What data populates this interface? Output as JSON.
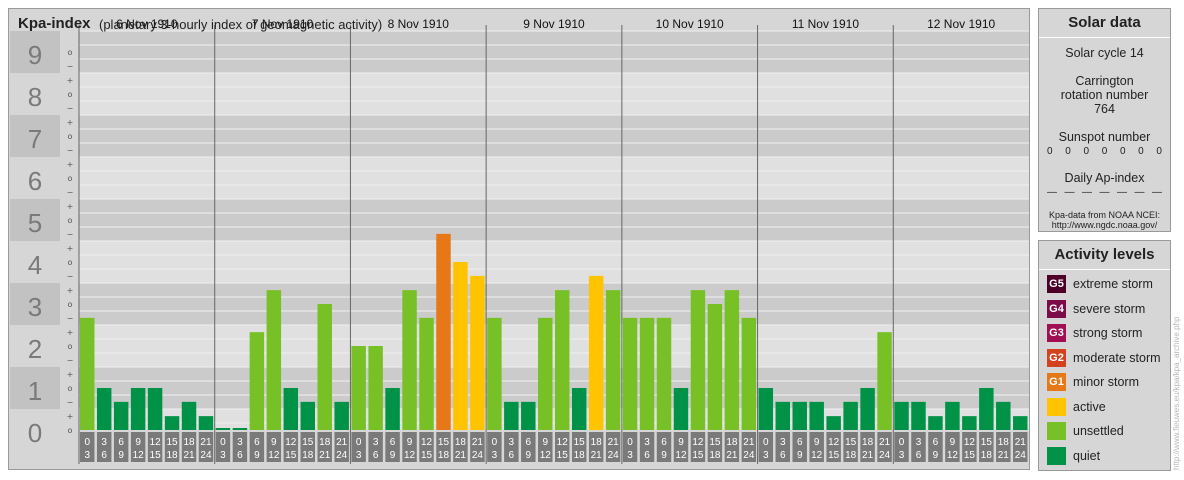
{
  "chart_data": {
    "type": "bar",
    "title": "Kpa-index",
    "subtitle": "(planetary 3-hourly index of geomagnetic activity)",
    "ylim": [
      0,
      9
    ],
    "y_major_labels": [
      "0",
      "1",
      "2",
      "3",
      "4",
      "5",
      "6",
      "7",
      "8",
      "9"
    ],
    "y_minor_labels": [
      "+",
      "o",
      "−"
    ],
    "days": [
      "6 Nov 1910",
      "7 Nov 1910",
      "8 Nov 1910",
      "9 Nov 1910",
      "10 Nov 1910",
      "11 Nov 1910",
      "12 Nov 1910"
    ],
    "interval_tops": [
      "0",
      "3",
      "6",
      "9",
      "12",
      "15",
      "18",
      "21"
    ],
    "interval_bottoms": [
      "3",
      "6",
      "9",
      "12",
      "15",
      "18",
      "21",
      "24"
    ],
    "values": [
      [
        2.67,
        1.0,
        0.67,
        1.0,
        1.0,
        0.33,
        0.67,
        0.33
      ],
      [
        0.0,
        0.0,
        2.33,
        3.33,
        1.0,
        0.67,
        3.0,
        0.67
      ],
      [
        2.0,
        2.0,
        1.0,
        3.33,
        2.67,
        4.67,
        4.0,
        3.67
      ],
      [
        2.67,
        0.67,
        0.67,
        2.67,
        3.33,
        1.0,
        3.67,
        3.33
      ],
      [
        2.67,
        2.67,
        2.67,
        1.0,
        3.33,
        3.0,
        3.33,
        2.67
      ],
      [
        1.0,
        0.67,
        0.67,
        0.67,
        0.33,
        0.67,
        1.0,
        2.33
      ],
      [
        0.67,
        0.67,
        0.33,
        0.67,
        0.33,
        1.0,
        0.67,
        0.33
      ]
    ],
    "colors": {
      "quiet": "#009246",
      "unsettled": "#77c127",
      "active": "#ffc300",
      "G1": "#e67817",
      "G2": "#d2421e",
      "G3": "#a10e51",
      "G4": "#7e0b49",
      "G5": "#4d0126"
    }
  },
  "solar": {
    "heading": "Solar data",
    "cycle": "Solar cycle 14",
    "carrington": "Carrington rotation number 764",
    "sunspot_label": "Sunspot number",
    "sunspots": [
      "0",
      "0",
      "0",
      "0",
      "0",
      "0",
      "0"
    ],
    "ap_label": "Daily Ap-index",
    "ap": [
      "—",
      "—",
      "—",
      "—",
      "—",
      "—",
      "—"
    ],
    "source": "Kpa-data from NOAA NCEI:",
    "source_url": "http://www.ngdc.noaa.gov/"
  },
  "levels": {
    "heading": "Activity levels",
    "items": [
      {
        "badge": "G5",
        "label": "extreme storm",
        "color": "#4d0126"
      },
      {
        "badge": "G4",
        "label": "severe storm",
        "color": "#7e0b49"
      },
      {
        "badge": "G3",
        "label": "strong storm",
        "color": "#a10e51"
      },
      {
        "badge": "G2",
        "label": "moderate storm",
        "color": "#d2421e"
      },
      {
        "badge": "G1",
        "label": "minor storm",
        "color": "#e67817"
      },
      {
        "badge": "",
        "label": "active",
        "color": "#ffc300"
      },
      {
        "badge": "",
        "label": "unsettled",
        "color": "#77c127"
      },
      {
        "badge": "",
        "label": "quiet",
        "color": "#009246"
      }
    ]
  },
  "credit": "http://www.fieuwes.eu/kpa/kpa_archive.php"
}
